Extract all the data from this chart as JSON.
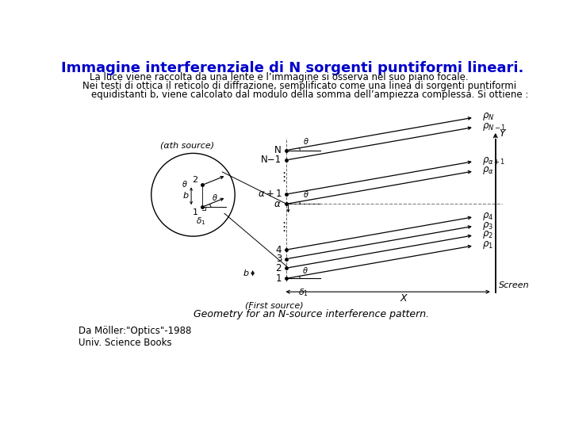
{
  "title": "Immagine interferenziale di N sorgenti puntiformi lineari.",
  "title_color": "#0000CC",
  "title_fontsize": 13,
  "line1": "La luce viene raccolta da una lente e l’immagine si osserva nel suo piano focale.",
  "line2": "Nei testi di ottica il reticolo di diffrazione, semplificato come una linea di sorgenti puntiformi",
  "line3": "equidistanti b, viene calcolato dal modulo della somma dell’ampiezza complessa. Si ottiene :",
  "caption": "Da Möller:\"Optics\"-1988\nUniv. Science Books",
  "fig_caption": "Geometry for an N-source interference pattern.",
  "bg_color": "#ffffff",
  "text_color": "#000000"
}
